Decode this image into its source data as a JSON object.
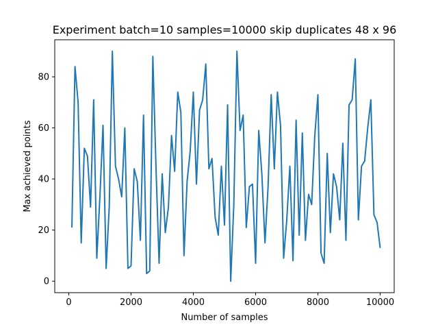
{
  "chart_data": {
    "type": "line",
    "title": "Experiment batch=10 samples=10000 skip duplicates 48 x 96",
    "xlabel": "Number of samples",
    "ylabel": "Max achieved points",
    "xlim": [
      -450,
      10450
    ],
    "ylim": [
      -4.5,
      94.5
    ],
    "xticks": [
      0,
      2000,
      4000,
      6000,
      8000,
      10000
    ],
    "xtick_labels": [
      "0",
      "2000",
      "4000",
      "6000",
      "8000",
      "10000"
    ],
    "yticks": [
      0,
      20,
      40,
      60,
      80
    ],
    "ytick_labels": [
      "0",
      "20",
      "40",
      "60",
      "80"
    ],
    "grid": false,
    "legend": "none",
    "colors": {
      "series": "#1f77b4"
    },
    "series": [
      {
        "x": [
          100,
          200,
          300,
          400,
          500,
          600,
          700,
          800,
          900,
          1000,
          1100,
          1200,
          1300,
          1400,
          1500,
          1600,
          1700,
          1800,
          1900,
          2000,
          2100,
          2200,
          2300,
          2400,
          2500,
          2600,
          2700,
          2800,
          2900,
          3000,
          3100,
          3200,
          3300,
          3400,
          3500,
          3600,
          3700,
          3800,
          3900,
          4000,
          4100,
          4200,
          4300,
          4400,
          4500,
          4600,
          4700,
          4800,
          4900,
          5000,
          5100,
          5200,
          5300,
          5400,
          5500,
          5600,
          5700,
          5800,
          5900,
          6000,
          6100,
          6200,
          6300,
          6400,
          6500,
          6600,
          6700,
          6800,
          6900,
          7000,
          7100,
          7200,
          7300,
          7400,
          7500,
          7600,
          7700,
          7800,
          7900,
          8000,
          8100,
          8200,
          8300,
          8400,
          8500,
          8600,
          8700,
          8800,
          8900,
          9000,
          9100,
          9200,
          9300,
          9400,
          9500,
          9600,
          9700,
          9800,
          9900,
          10000
        ],
        "y": [
          21,
          84,
          70,
          15,
          52,
          49,
          29,
          71,
          9,
          33,
          61,
          5,
          29,
          90,
          45,
          40,
          33,
          60,
          5,
          6,
          44,
          39,
          16,
          65,
          3,
          4,
          88,
          45,
          7,
          42,
          19,
          29,
          57,
          43,
          74,
          66,
          10,
          39,
          51,
          74,
          38,
          67,
          71,
          85,
          44,
          48,
          25,
          18,
          45,
          22,
          69,
          0,
          30,
          90,
          59,
          65,
          21,
          37,
          38,
          7,
          59,
          42,
          15,
          37,
          73,
          44,
          74,
          61,
          9,
          24,
          45,
          8,
          63,
          18,
          58,
          16,
          34,
          30,
          57,
          73,
          11,
          7,
          50,
          19,
          42,
          37,
          24,
          54,
          16,
          69,
          71,
          87,
          24,
          45,
          47,
          60,
          71,
          26,
          23,
          13
        ]
      }
    ]
  }
}
